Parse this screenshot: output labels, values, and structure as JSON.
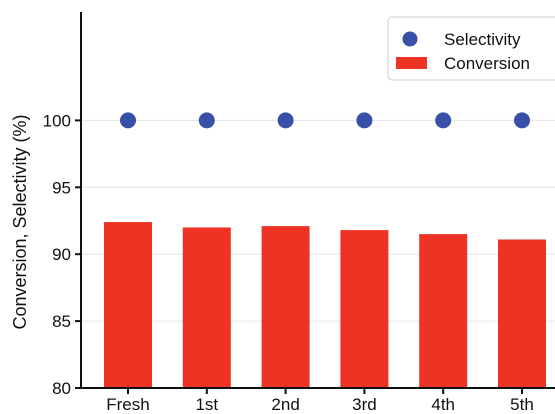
{
  "chart_data": {
    "type": "bar",
    "categories": [
      "Fresh",
      "1st",
      "2nd",
      "3rd",
      "4th",
      "5th"
    ],
    "series": [
      {
        "name": "Conversion",
        "type": "bar",
        "color": "#ee3224",
        "values": [
          92.4,
          92.0,
          92.1,
          91.8,
          91.5,
          91.1
        ]
      },
      {
        "name": "Selectivity",
        "type": "scatter",
        "color": "#3950a8",
        "values": [
          100,
          100,
          100,
          100,
          100,
          100
        ]
      }
    ],
    "title": "",
    "xlabel": "",
    "ylabel": "Conversion, Selectivity (%)",
    "ylim": [
      80,
      105
    ],
    "yticks": [
      80,
      85,
      90,
      95,
      100
    ],
    "grid": "horizontal",
    "legend_position": "top-right"
  }
}
